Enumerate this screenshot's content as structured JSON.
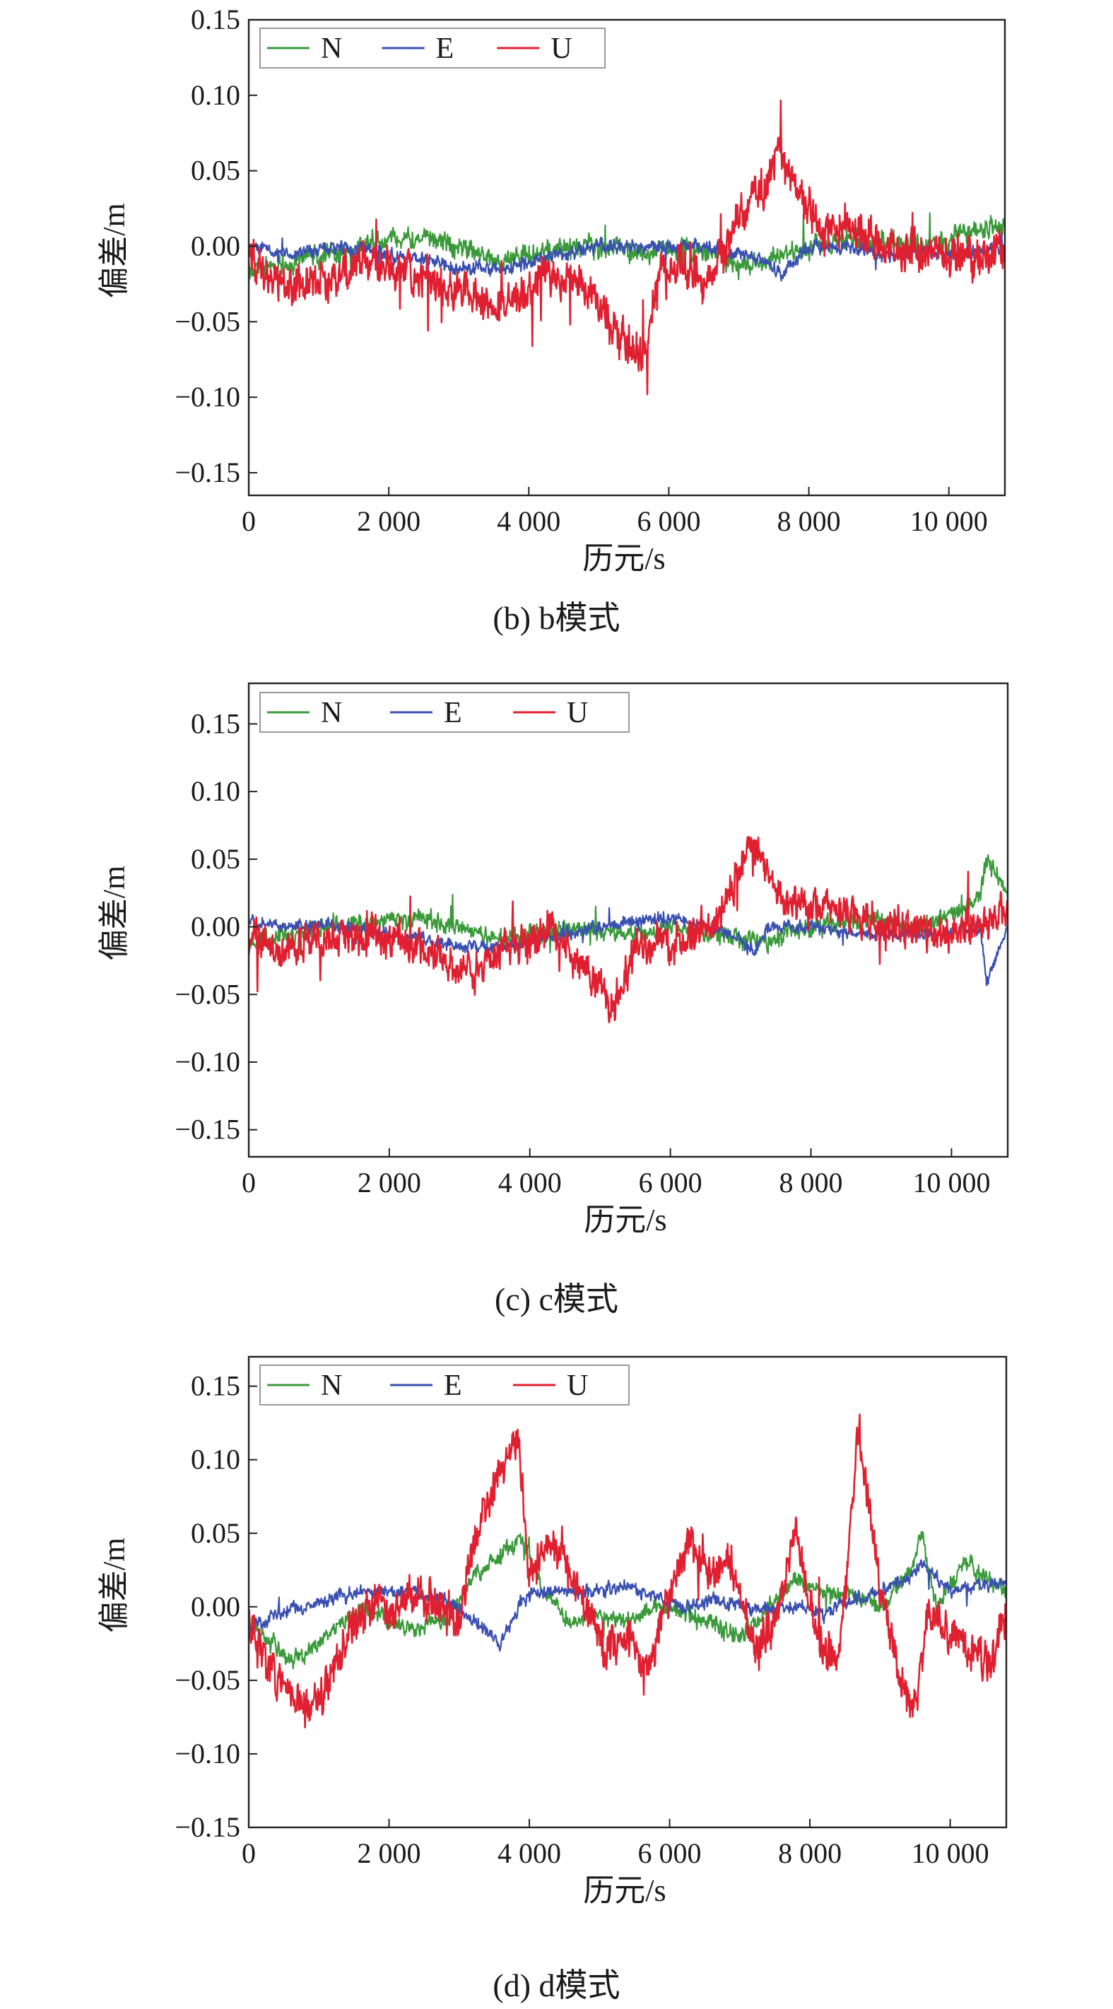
{
  "chart_data": [
    {
      "type": "line",
      "caption": "(b) b模式",
      "xlabel": "历元/s",
      "ylabel": "偏差/m",
      "xlim": [
        0,
        10800
      ],
      "ylim": [
        -0.165,
        0.15
      ],
      "xticks": [
        0,
        2000,
        4000,
        6000,
        8000,
        10000
      ],
      "xtick_labels": [
        "0",
        "2 000",
        "4 000",
        "6 000",
        "8 000",
        "10 000"
      ],
      "yticks": [
        0.15,
        0.1,
        0.05,
        0.0,
        -0.05,
        -0.1,
        -0.15
      ],
      "ytick_labels": [
        "0.15",
        "0.10",
        "0.05",
        "0.00",
        "−0.05",
        "−0.10",
        "−0.15"
      ],
      "legend_position": "top-left",
      "series": [
        {
          "name": "N",
          "color": "#3a9a3a",
          "noise": 0.006,
          "x": [
            0,
            600,
            1200,
            1600,
            2000,
            2600,
            3000,
            3600,
            4000,
            4600,
            5000,
            5600,
            6000,
            6600,
            7000,
            7400,
            7600,
            8000,
            8600,
            9000,
            9600,
            10000,
            10400,
            10800
          ],
          "y": [
            -0.015,
            -0.01,
            -0.005,
            0.0,
            0.005,
            0.005,
            0.0,
            -0.01,
            -0.005,
            0.0,
            0.0,
            -0.005,
            0.0,
            -0.005,
            -0.01,
            -0.01,
            -0.005,
            0.0,
            0.005,
            0.005,
            0.0,
            0.005,
            0.01,
            0.015
          ]
        },
        {
          "name": "E",
          "color": "#3a50b0",
          "noise": 0.004,
          "x": [
            0,
            600,
            1200,
            2000,
            2600,
            3000,
            3600,
            4000,
            4600,
            5000,
            5600,
            6000,
            6600,
            7000,
            7400,
            7600,
            8000,
            8600,
            9000,
            9600,
            10000,
            10400,
            10800
          ],
          "y": [
            0.0,
            -0.005,
            0.0,
            -0.005,
            -0.01,
            -0.015,
            -0.015,
            -0.01,
            -0.005,
            0.0,
            0.0,
            0.0,
            0.0,
            -0.005,
            -0.01,
            -0.02,
            0.0,
            0.0,
            -0.005,
            -0.005,
            -0.005,
            -0.005,
            0.0
          ]
        },
        {
          "name": "U",
          "color": "#e02030",
          "noise": 0.012,
          "x": [
            0,
            300,
            600,
            1000,
            1400,
            1800,
            2200,
            2600,
            3000,
            3400,
            3800,
            4200,
            4600,
            5000,
            5300,
            5600,
            5900,
            6200,
            6500,
            6800,
            7000,
            7200,
            7400,
            7550,
            7700,
            7900,
            8200,
            8600,
            9000,
            9400,
            9800,
            10200,
            10600,
            10800
          ],
          "y": [
            -0.005,
            -0.02,
            -0.03,
            -0.025,
            -0.015,
            -0.01,
            -0.015,
            -0.02,
            -0.03,
            -0.04,
            -0.035,
            -0.02,
            -0.02,
            -0.04,
            -0.06,
            -0.07,
            -0.02,
            -0.01,
            -0.025,
            -0.005,
            0.02,
            0.03,
            0.04,
            0.07,
            0.05,
            0.03,
            0.01,
            0.015,
            0.0,
            0.0,
            -0.005,
            -0.005,
            -0.01,
            0.0
          ]
        }
      ]
    },
    {
      "type": "line",
      "caption": "(c) c模式",
      "xlabel": "历元/s",
      "ylabel": "偏差/m",
      "xlim": [
        0,
        10800
      ],
      "ylim": [
        -0.17,
        0.18
      ],
      "xticks": [
        0,
        2000,
        4000,
        6000,
        8000,
        10000
      ],
      "xtick_labels": [
        "0",
        "2 000",
        "4 000",
        "6 000",
        "8 000",
        "10 000"
      ],
      "yticks": [
        0.15,
        0.1,
        0.05,
        0.0,
        -0.05,
        -0.1,
        -0.15
      ],
      "ytick_labels": [
        "0.15",
        "0.10",
        "0.05",
        "0.00",
        "−0.05",
        "−0.10",
        "−0.15"
      ],
      "legend_position": "top-left",
      "series": [
        {
          "name": "N",
          "color": "#3a9a3a",
          "noise": 0.006,
          "x": [
            0,
            600,
            1200,
            1800,
            2400,
            3000,
            3600,
            4000,
            4600,
            5000,
            5600,
            6000,
            6600,
            7000,
            7400,
            8000,
            8600,
            9000,
            9600,
            10000,
            10400,
            10500,
            10800
          ],
          "y": [
            -0.01,
            -0.005,
            0.0,
            0.005,
            0.005,
            0.0,
            -0.01,
            -0.005,
            0.0,
            -0.005,
            -0.005,
            0.0,
            -0.005,
            -0.01,
            -0.01,
            0.0,
            0.005,
            0.005,
            0.0,
            0.01,
            0.02,
            0.05,
            0.02
          ]
        },
        {
          "name": "E",
          "color": "#3a50b0",
          "noise": 0.004,
          "x": [
            0,
            600,
            1200,
            2000,
            2600,
            3000,
            3600,
            4000,
            4600,
            5000,
            5600,
            6000,
            6600,
            7000,
            7200,
            7400,
            8000,
            8600,
            9000,
            9600,
            10000,
            10400,
            10500,
            10800
          ],
          "y": [
            0.005,
            0.0,
            0.0,
            -0.005,
            -0.01,
            -0.015,
            -0.015,
            -0.01,
            -0.005,
            0.0,
            0.005,
            0.005,
            0.0,
            -0.01,
            -0.02,
            0.0,
            0.0,
            -0.005,
            -0.005,
            -0.005,
            -0.005,
            0.0,
            -0.04,
            0.0
          ]
        },
        {
          "name": "U",
          "color": "#e02030",
          "noise": 0.012,
          "x": [
            0,
            400,
            800,
            1200,
            1600,
            2000,
            2400,
            2800,
            3200,
            3600,
            4000,
            4300,
            4600,
            4900,
            5200,
            5500,
            5800,
            6200,
            6600,
            6900,
            7100,
            7300,
            7600,
            8000,
            8400,
            8800,
            9200,
            9600,
            10000,
            10400,
            10800
          ],
          "y": [
            -0.01,
            -0.02,
            -0.015,
            -0.005,
            -0.01,
            -0.005,
            -0.015,
            -0.025,
            -0.035,
            -0.02,
            -0.01,
            0.0,
            -0.02,
            -0.04,
            -0.06,
            -0.02,
            -0.01,
            -0.01,
            0.0,
            0.03,
            0.06,
            0.05,
            0.02,
            0.015,
            0.01,
            0.005,
            0.0,
            0.0,
            -0.005,
            0.005,
            0.01
          ]
        }
      ]
    },
    {
      "type": "line",
      "caption": "(d) d模式",
      "xlabel": "历元/s",
      "ylabel": "偏差/m",
      "xlim": [
        0,
        10800
      ],
      "ylim": [
        -0.15,
        0.17
      ],
      "xticks": [
        0,
        2000,
        4000,
        6000,
        8000,
        10000
      ],
      "xtick_labels": [
        "0",
        "2 000",
        "4 000",
        "6 000",
        "8 000",
        "10 000"
      ],
      "yticks": [
        0.15,
        0.1,
        0.05,
        0.0,
        -0.05,
        -0.1,
        -0.15
      ],
      "ytick_labels": [
        "0.15",
        "0.10",
        "0.05",
        "0.00",
        "−0.05",
        "−0.10",
        "−0.15"
      ],
      "legend_position": "top-left",
      "series": [
        {
          "name": "N",
          "color": "#3a9a3a",
          "noise": 0.005,
          "x": [
            0,
            300,
            600,
            900,
            1200,
            1600,
            2000,
            2400,
            2800,
            3200,
            3600,
            3900,
            4200,
            4600,
            5000,
            5400,
            5800,
            6200,
            6600,
            7000,
            7400,
            7800,
            8200,
            8600,
            9000,
            9400,
            9600,
            9800,
            10200,
            10500,
            10800
          ],
          "y": [
            -0.01,
            -0.025,
            -0.035,
            -0.03,
            -0.015,
            0.0,
            -0.01,
            -0.015,
            -0.01,
            0.02,
            0.035,
            0.045,
            0.01,
            -0.01,
            -0.005,
            -0.01,
            0.0,
            -0.005,
            -0.01,
            -0.02,
            0.0,
            0.02,
            0.01,
            0.01,
            0.0,
            0.02,
            0.05,
            0.0,
            0.03,
            0.02,
            0.01
          ]
        },
        {
          "name": "E",
          "color": "#3a50b0",
          "noise": 0.004,
          "x": [
            0,
            400,
            800,
            1200,
            1600,
            2000,
            2400,
            2800,
            3200,
            3600,
            3900,
            4200,
            4600,
            5000,
            5400,
            5800,
            6200,
            6600,
            7000,
            7400,
            7800,
            8200,
            8600,
            9000,
            9400,
            9600,
            10000,
            10400,
            10800
          ],
          "y": [
            -0.015,
            -0.005,
            0.0,
            0.005,
            0.01,
            0.01,
            0.01,
            0.005,
            -0.01,
            -0.025,
            0.005,
            0.01,
            0.01,
            0.01,
            0.015,
            0.005,
            0.0,
            0.005,
            0.0,
            0.0,
            0.0,
            -0.005,
            0.005,
            0.01,
            0.02,
            0.03,
            0.01,
            0.015,
            0.015
          ]
        },
        {
          "name": "U",
          "color": "#e02030",
          "noise": 0.012,
          "x": [
            0,
            300,
            600,
            900,
            1200,
            1500,
            1800,
            2100,
            2400,
            2700,
            3000,
            3300,
            3600,
            3850,
            4000,
            4300,
            4600,
            4900,
            5100,
            5400,
            5700,
            6000,
            6300,
            6600,
            6900,
            7200,
            7500,
            7800,
            8100,
            8400,
            8700,
            9000,
            9300,
            9500,
            9700,
            10000,
            10300,
            10600,
            10800
          ],
          "y": [
            -0.01,
            -0.04,
            -0.06,
            -0.07,
            -0.04,
            -0.01,
            0.005,
            -0.005,
            0.01,
            0.0,
            -0.005,
            0.06,
            0.09,
            0.12,
            0.02,
            0.04,
            0.02,
            -0.01,
            -0.03,
            -0.02,
            -0.04,
            0.01,
            0.05,
            0.02,
            0.03,
            -0.03,
            -0.01,
            0.05,
            -0.02,
            -0.04,
            0.12,
            0.01,
            -0.05,
            -0.07,
            0.0,
            -0.02,
            -0.03,
            -0.04,
            0.0
          ]
        }
      ]
    }
  ]
}
